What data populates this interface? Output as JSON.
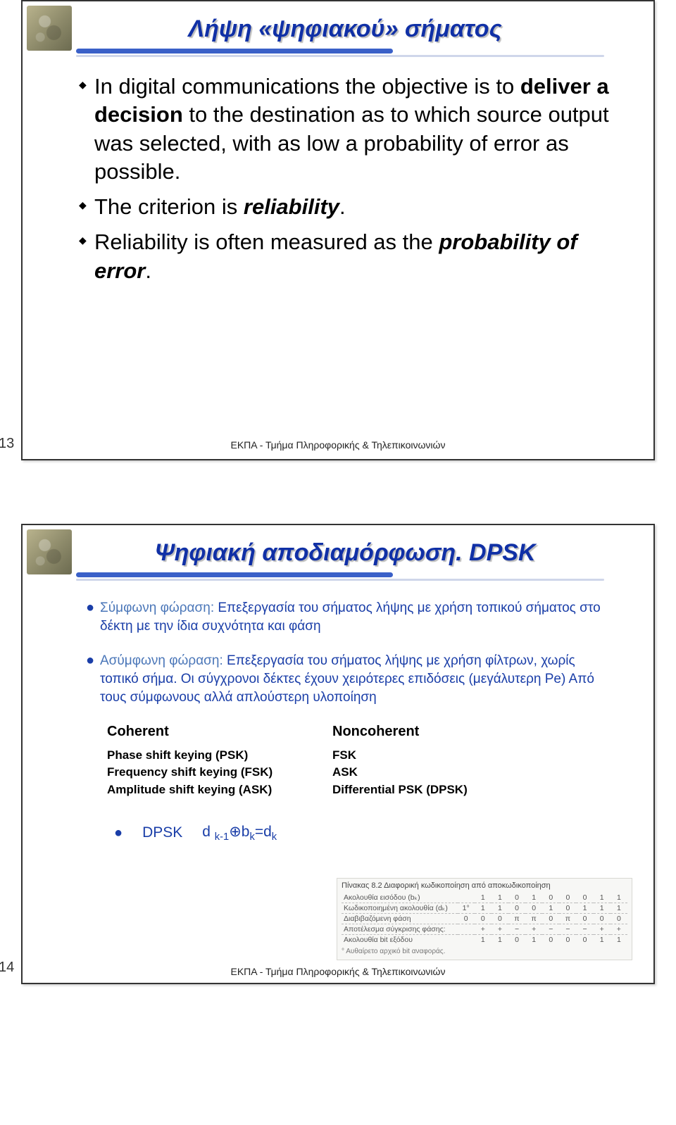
{
  "slide1": {
    "title": "Λήψη «ψηφιακού» σήματος",
    "bullets": [
      {
        "pre": "In digital communications the objective is to ",
        "bold": "deliver a decision",
        "post": " to the destination as to which source output was selected, with as low a probability of error as possible."
      },
      {
        "pre": "The criterion is ",
        "boldit": "reliability",
        "post": "."
      },
      {
        "pre": "Reliability is often measured as the ",
        "boldit": "probability of error",
        "post": "."
      }
    ],
    "number": "13",
    "footer": "ΕΚΠΑ - Τμήμα Πληροφορικής & Τηλεπικοινωνιών"
  },
  "slide2": {
    "title": "Ψηφιακή αποδιαμόρφωση. DPSK",
    "items": [
      {
        "label": "Σύμφωνη φώραση:",
        "text": " Επεξεργασία του σήματος λήψης με χρήση τοπικού σήματος στο δέκτη με την ίδια συχνότητα και φάση"
      },
      {
        "label": "Ασύμφωνη φώραση:",
        "text": " Επεξεργασία του σήματος λήψης με χρήση φίλτρων, χωρίς τοπικό σήμα. Οι σύγχρονοι δέκτες έχουν χειρότερες επιδόσεις (μεγάλυτερη Pe) Από τους σύμφωνους αλλά απλούστερη υλοποίηση"
      }
    ],
    "table": {
      "head": {
        "left": "Coherent",
        "right": "Noncoherent"
      },
      "left": [
        "Phase shift keying (PSK)",
        "Frequency shift keying (FSK)",
        "Amplitude shift keying (ASK)"
      ],
      "right": [
        "FSK",
        "ASK",
        "Differential PSK (DPSK)"
      ]
    },
    "dpsk": {
      "label": "DPSK",
      "eq_html": "d <sub>k-1</sub>⊕b<sub>k</sub>=d<sub>k</sub>"
    },
    "greek_table": {
      "title": "Πίνακας 8.2   Διαφορική κωδικοποίηση από αποκωδικοποίηση",
      "rows": [
        {
          "label": "Ακολουθία εισόδου (bₖ)",
          "cells": [
            "",
            "1",
            "1",
            "0",
            "1",
            "0",
            "0",
            "0",
            "1",
            "1"
          ]
        },
        {
          "label": "Κωδικοποιημένη ακολουθία (dₖ)",
          "cells": [
            "1°",
            "1",
            "1",
            "0",
            "0",
            "1",
            "0",
            "1",
            "1",
            "1"
          ]
        },
        {
          "label": "Διαβιβαζόμενη φάση",
          "cells": [
            "0",
            "0",
            "0",
            "π",
            "π",
            "0",
            "π",
            "0",
            "0",
            "0"
          ]
        },
        {
          "label": "Αποτέλεσμα σύγκρισης φάσης:",
          "cells": [
            "",
            "+",
            "+",
            "−",
            "+",
            "−",
            "−",
            "−",
            "+",
            "+"
          ]
        },
        {
          "label": "Ακολουθία bit εξόδου",
          "cells": [
            "",
            "1",
            "1",
            "0",
            "1",
            "0",
            "0",
            "0",
            "1",
            "1"
          ]
        }
      ],
      "footnote": "° Αυθαίρετο αρχικό bit αναφοράς."
    },
    "number": "14",
    "footer": "ΕΚΠΑ - Τμήμα Πληροφορικής & Τηλεπικοινωνιών"
  },
  "colors": {
    "title": "#1030a6",
    "accent": "#3a60c8",
    "body": "#1a3ea8",
    "label": "#4a76b8"
  }
}
